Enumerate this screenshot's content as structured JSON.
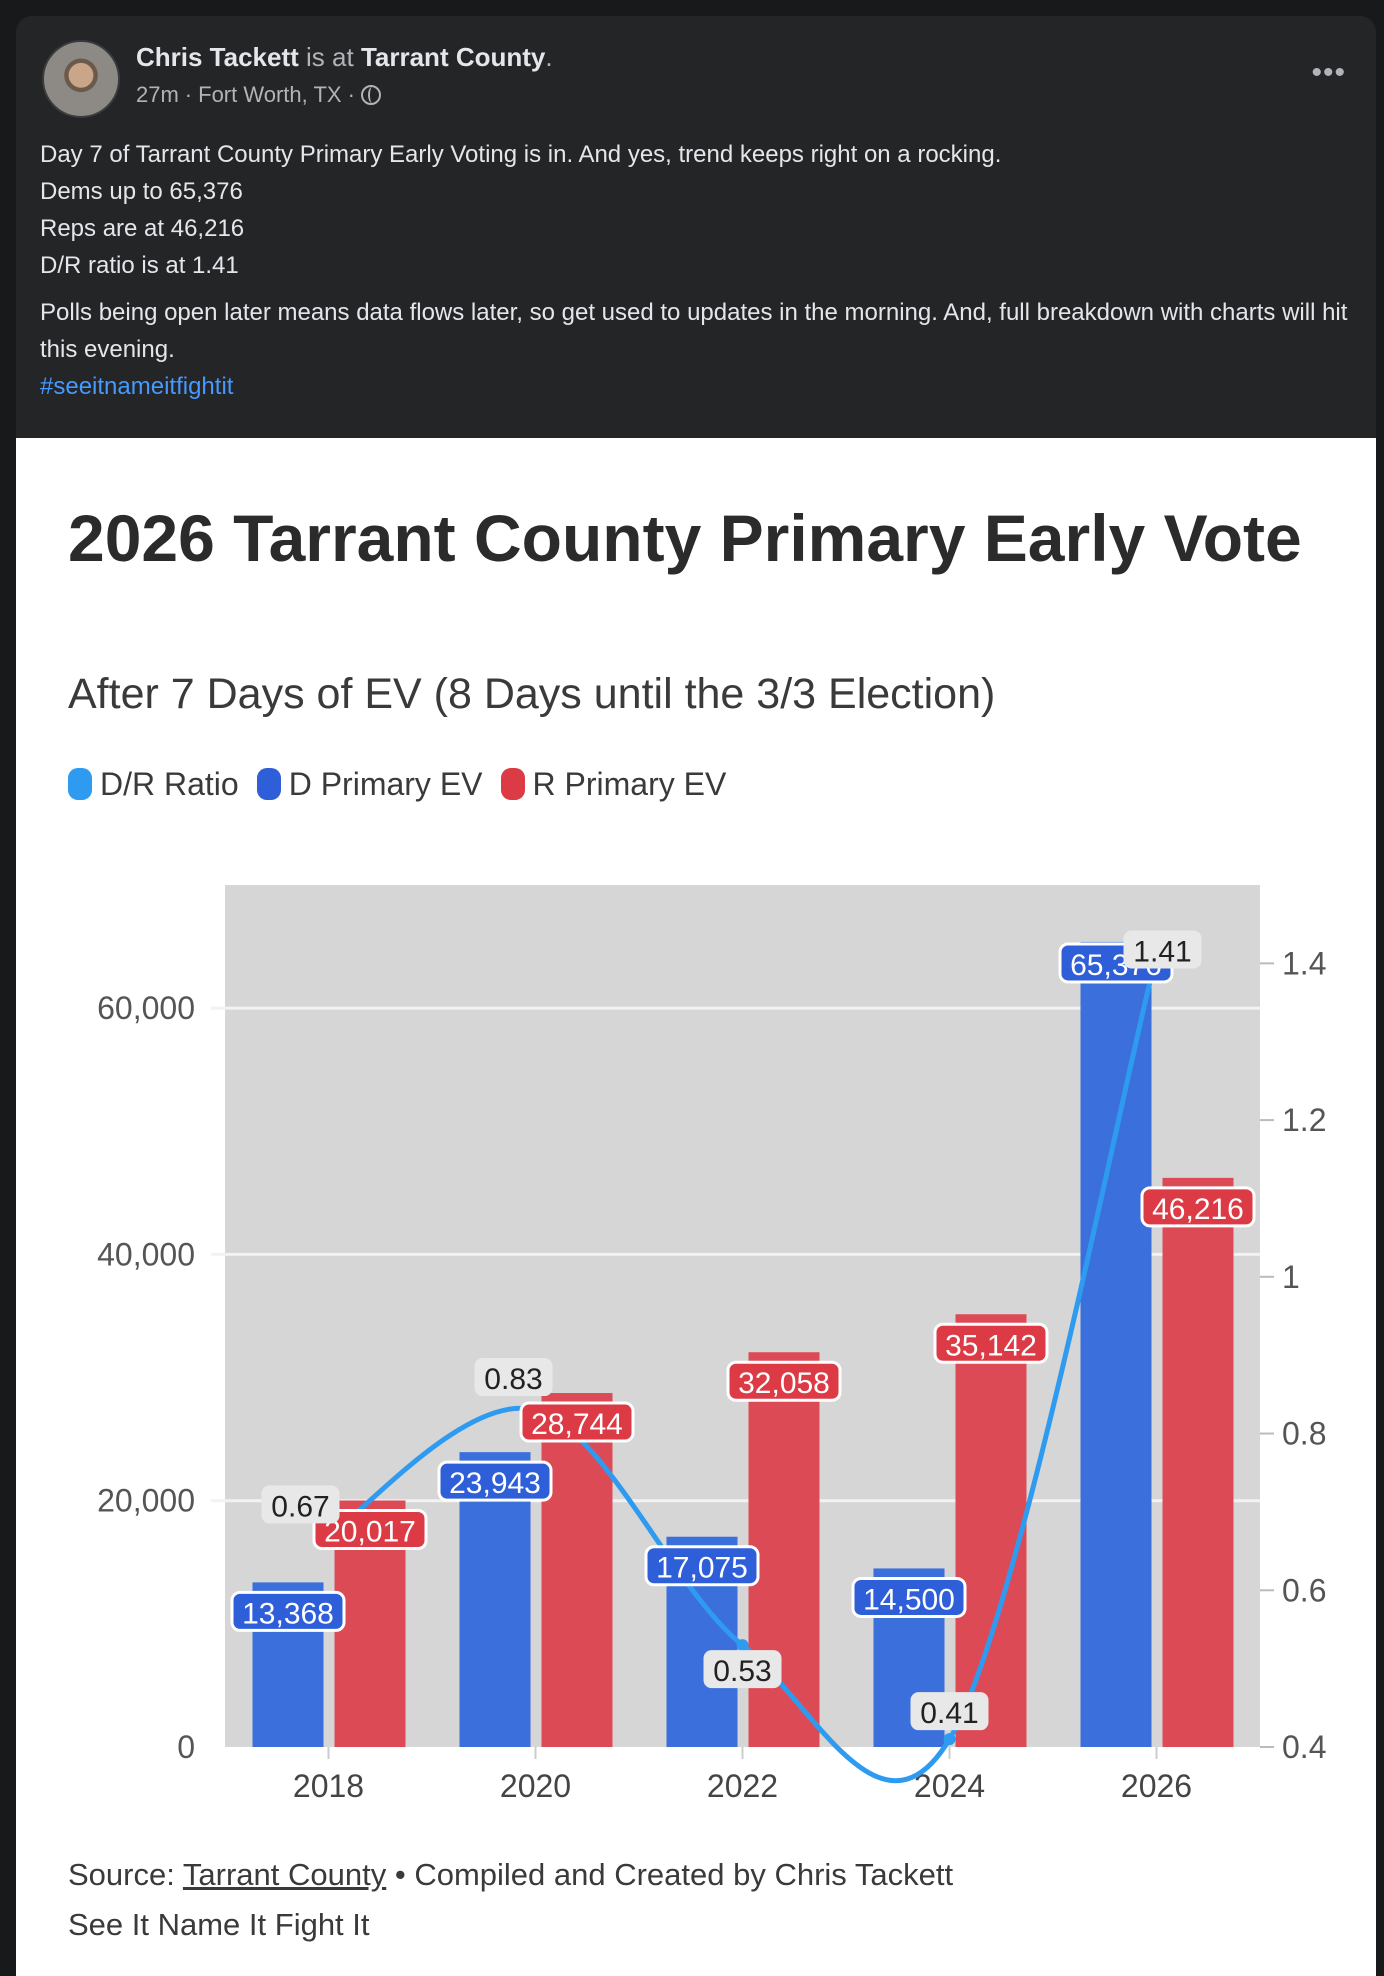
{
  "post": {
    "author": "Chris Tackett",
    "is_at": "is at",
    "place": "Tarrant County",
    "time": "27m",
    "location": "Fort Worth, TX",
    "more_icon": "ellipsis-icon",
    "privacy_icon": "globe-icon",
    "lines": [
      "Day 7 of Tarrant County Primary Early Voting is in. And yes, trend keeps right on a rocking.",
      "Dems up to 65,376",
      "Reps are at 46,216",
      "D/R ratio is at 1.41"
    ],
    "paragraph2": "Polls being open later means data flows later, so get used to updates in the morning. And, full breakdown with charts will hit this evening.",
    "hashtag": "#seeitnameitfightit"
  },
  "chart_data": {
    "type": "bar",
    "title": "2026 Tarrant County Primary Early Vote",
    "subtitle": "After 7 Days of EV (8 Days until the 3/3 Election)",
    "categories": [
      "2018",
      "2020",
      "2022",
      "2024",
      "2026"
    ],
    "series": [
      {
        "name": "D/R Ratio",
        "type": "line",
        "axis": "right",
        "color": "#2e9bf0",
        "values": [
          0.67,
          0.83,
          0.53,
          0.41,
          1.41
        ],
        "labels": [
          "0.67",
          "0.83",
          "0.53",
          "0.41",
          "1.41"
        ]
      },
      {
        "name": "D Primary EV",
        "type": "bar",
        "axis": "left",
        "color": "#3a6fdc",
        "values": [
          13368,
          23943,
          17075,
          14500,
          65376
        ],
        "labels": [
          "13,368",
          "23,943",
          "17,075",
          "14,500",
          "65,376"
        ]
      },
      {
        "name": "R Primary EV",
        "type": "bar",
        "axis": "left",
        "color": "#dc4a55",
        "values": [
          20017,
          28744,
          32058,
          35142,
          46216
        ],
        "labels": [
          "20,017",
          "28,744",
          "32,058",
          "35,142",
          "46,216"
        ]
      }
    ],
    "ylim": [
      0,
      70000
    ],
    "yticks": [
      0,
      20000,
      40000,
      60000
    ],
    "ytick_labels": [
      "0",
      "20,000",
      "40,000",
      "60,000"
    ],
    "y2lim": [
      0.4,
      1.5
    ],
    "y2ticks": [
      0.4,
      0.6,
      0.8,
      1,
      1.2,
      1.4
    ],
    "y2tick_labels": [
      "0.4",
      "0.6",
      "0.8",
      "1",
      "1.2",
      "1.4"
    ],
    "grid": true,
    "legend": "top-left",
    "source_prefix": "Source:",
    "source_link": "Tarrant County",
    "credit": "• Compiled and Created by Chris Tackett",
    "footer": "See It Name It Fight It"
  }
}
